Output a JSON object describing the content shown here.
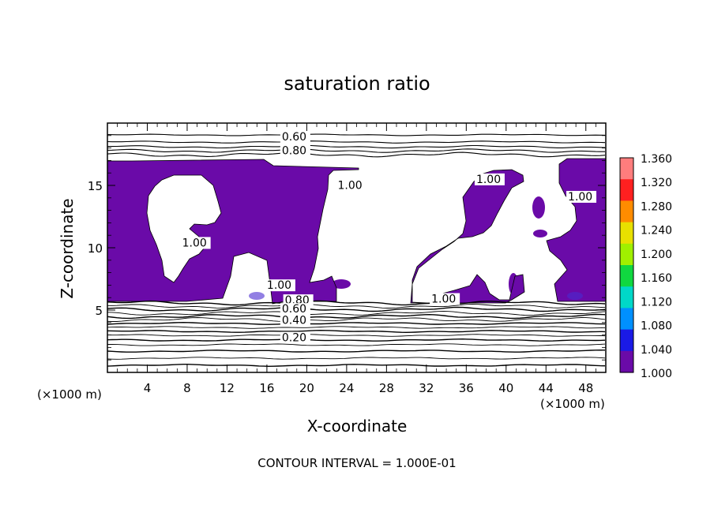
{
  "chart_data": {
    "type": "heatmap",
    "title": "saturation ratio",
    "xlabel": "X-coordinate",
    "ylabel": "Z-coordinate",
    "x_unit_left": "(×1000 m)",
    "x_unit_right": "(×1000 m)",
    "xlim": [
      0,
      50
    ],
    "ylim": [
      0,
      20
    ],
    "x_ticks": [
      4,
      8,
      12,
      16,
      20,
      24,
      28,
      32,
      36,
      40,
      44,
      48
    ],
    "y_ticks": [
      5,
      10,
      15
    ],
    "footer": "CONTOUR INTERVAL = 1.000E-01",
    "colorbar": {
      "levels": [
        "1.360",
        "1.320",
        "1.280",
        "1.240",
        "1.200",
        "1.160",
        "1.120",
        "1.080",
        "1.040",
        "1.000"
      ],
      "colors": [
        "#ff7d7d",
        "#ff2020",
        "#ff8c00",
        "#e8e000",
        "#a0f000",
        "#10d840",
        "#00d8c8",
        "#0090ff",
        "#1a1ae6",
        "#6a0aa8"
      ]
    },
    "contour_labels": [
      {
        "text": "0.60",
        "x": 17.5,
        "y": 18.6
      },
      {
        "text": "0.80",
        "x": 17.5,
        "y": 17.5
      },
      {
        "text": "1.00",
        "x": 23.1,
        "y": 14.7
      },
      {
        "text": "1.00",
        "x": 37.0,
        "y": 15.2
      },
      {
        "text": "1.00",
        "x": 46.2,
        "y": 13.8
      },
      {
        "text": "1.00",
        "x": 7.5,
        "y": 10.1
      },
      {
        "text": "1.00",
        "x": 16.0,
        "y": 6.7
      },
      {
        "text": "1.00",
        "x": 32.5,
        "y": 5.6
      },
      {
        "text": "0.80",
        "x": 17.8,
        "y": 5.5
      },
      {
        "text": "0.60",
        "x": 17.5,
        "y": 4.8
      },
      {
        "text": "0.40",
        "x": 17.5,
        "y": 3.9
      },
      {
        "text": "0.20",
        "x": 17.5,
        "y": 2.5
      }
    ]
  }
}
